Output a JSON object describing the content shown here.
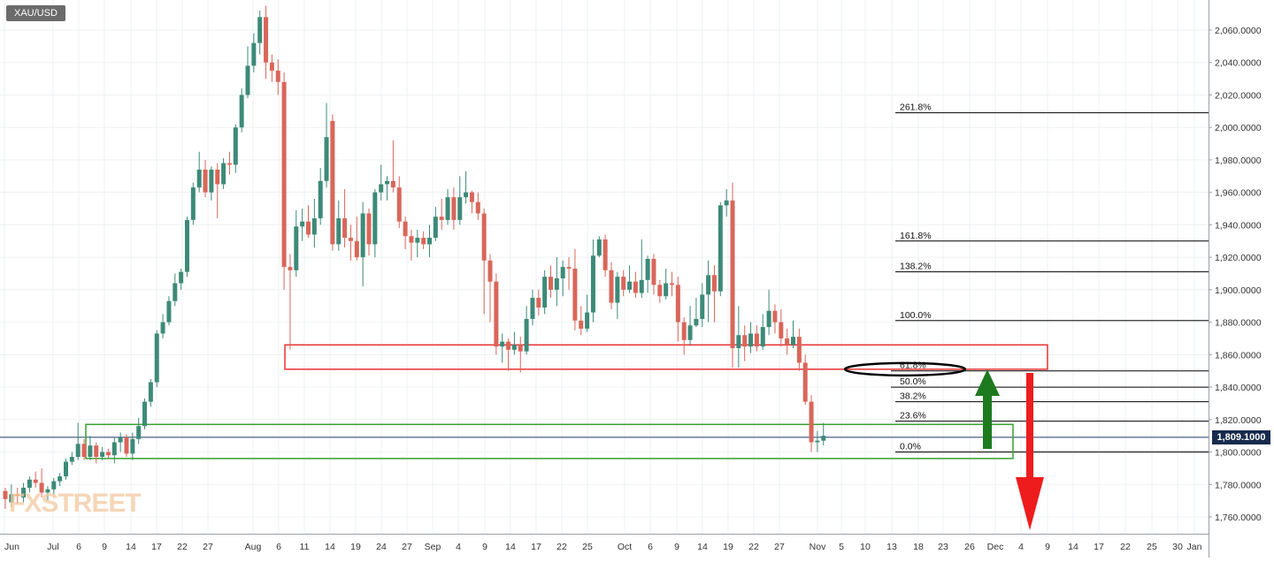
{
  "symbol": "XAU/USD",
  "watermark": "FXSTREET",
  "current_price_label": "1,809.1000",
  "colors": {
    "up": "#3d8a78",
    "down": "#d9665a",
    "zone_red": "#e83030",
    "zone_green": "#38a030",
    "arrow_up": "#1e7a1e",
    "arrow_down": "#ee1c1c",
    "price_tag": "#182b4d"
  },
  "chart_data": {
    "type": "candlestick",
    "ylim": [
      1745,
      2075
    ],
    "y_ticks": [
      "2,060.0000",
      "2,040.0000",
      "2,020.0000",
      "2,000.0000",
      "1,980.0000",
      "1,960.0000",
      "1,940.0000",
      "1,920.0000",
      "1,900.0000",
      "1,880.0000",
      "1,860.0000",
      "1,840.0000",
      "1,820.0000",
      "1,800.0000",
      "1,780.0000",
      "1,760.0000"
    ],
    "y_tick_values": [
      2060,
      2040,
      2020,
      2000,
      1980,
      1960,
      1940,
      1920,
      1900,
      1880,
      1860,
      1840,
      1820,
      1800,
      1780,
      1760
    ],
    "x_labels": [
      "Jun",
      "Jul",
      "6",
      "9",
      "14",
      "17",
      "22",
      "27",
      "Aug",
      "6",
      "11",
      "14",
      "19",
      "24",
      "27",
      "Sep",
      "4",
      "9",
      "14",
      "17",
      "22",
      "25",
      "Oct",
      "6",
      "9",
      "14",
      "19",
      "22",
      "27",
      "Nov",
      "5",
      "10",
      "13",
      "18",
      "23",
      "26",
      "Dec",
      "4",
      "9",
      "14",
      "17",
      "22",
      "25",
      "30",
      "Jan"
    ],
    "candles": [
      [
        1776,
        1771,
        1778,
        1765
      ],
      [
        1769,
        1774,
        1780,
        1766
      ],
      [
        1774,
        1773,
        1778,
        1768
      ],
      [
        1772,
        1778,
        1781,
        1769
      ],
      [
        1778,
        1783,
        1785,
        1775
      ],
      [
        1783,
        1781,
        1788,
        1778
      ],
      [
        1781,
        1775,
        1790,
        1772
      ],
      [
        1775,
        1777,
        1779,
        1770
      ],
      [
        1777,
        1782,
        1784,
        1774
      ],
      [
        1782,
        1785,
        1787,
        1779
      ],
      [
        1785,
        1794,
        1796,
        1783
      ],
      [
        1794,
        1797,
        1800,
        1792
      ],
      [
        1797,
        1805,
        1818,
        1795
      ],
      [
        1805,
        1797,
        1808,
        1795
      ],
      [
        1797,
        1804,
        1810,
        1795
      ],
      [
        1804,
        1797,
        1806,
        1793
      ],
      [
        1797,
        1800,
        1803,
        1795
      ],
      [
        1800,
        1798,
        1802,
        1796
      ],
      [
        1798,
        1806,
        1809,
        1793
      ],
      [
        1806,
        1809,
        1812,
        1800
      ],
      [
        1809,
        1799,
        1811,
        1797
      ],
      [
        1799,
        1808,
        1812,
        1795
      ],
      [
        1808,
        1816,
        1821,
        1805
      ],
      [
        1816,
        1831,
        1833,
        1814
      ],
      [
        1831,
        1843,
        1845,
        1828
      ],
      [
        1843,
        1873,
        1875,
        1840
      ],
      [
        1873,
        1880,
        1885,
        1870
      ],
      [
        1880,
        1893,
        1896,
        1878
      ],
      [
        1893,
        1904,
        1910,
        1890
      ],
      [
        1904,
        1911,
        1913,
        1900
      ],
      [
        1911,
        1943,
        1945,
        1908
      ],
      [
        1943,
        1963,
        1966,
        1940
      ],
      [
        1963,
        1974,
        1985,
        1960
      ],
      [
        1974,
        1960,
        1980,
        1957
      ],
      [
        1960,
        1974,
        1976,
        1955
      ],
      [
        1974,
        1965,
        1978,
        1944
      ],
      [
        1965,
        1978,
        1981,
        1962
      ],
      [
        1978,
        1977,
        1985,
        1971
      ],
      [
        1977,
        2000,
        2002,
        1972
      ],
      [
        2000,
        2020,
        2024,
        1997
      ],
      [
        2020,
        2038,
        2050,
        2018
      ],
      [
        2038,
        2052,
        2058,
        2034
      ],
      [
        2052,
        2068,
        2072,
        2045
      ],
      [
        2068,
        2040,
        2075,
        2030
      ],
      [
        2040,
        2035,
        2045,
        2028
      ],
      [
        2035,
        2028,
        2042,
        2020
      ],
      [
        2028,
        1914,
        2034,
        1900
      ],
      [
        1914,
        1912,
        1922,
        1863
      ],
      [
        1912,
        1939,
        1949,
        1908
      ],
      [
        1939,
        1942,
        1950,
        1930
      ],
      [
        1942,
        1934,
        1952,
        1932
      ],
      [
        1934,
        1944,
        1956,
        1926
      ],
      [
        1944,
        1967,
        1975,
        1940
      ],
      [
        1967,
        1994,
        2015,
        1963
      ],
      [
        2004,
        1928,
        2008,
        1924
      ],
      [
        1928,
        1944,
        1955,
        1924
      ],
      [
        1944,
        1932,
        1962,
        1926
      ],
      [
        1932,
        1930,
        1940,
        1918
      ],
      [
        1930,
        1920,
        1945,
        1918
      ],
      [
        1920,
        1947,
        1954,
        1902
      ],
      [
        1947,
        1928,
        1950,
        1921
      ],
      [
        1928,
        1960,
        1962,
        1920
      ],
      [
        1960,
        1965,
        1977,
        1955
      ],
      [
        1965,
        1967,
        1970,
        1955
      ],
      [
        1967,
        1963,
        1992,
        1960
      ],
      [
        1963,
        1942,
        1970,
        1938
      ],
      [
        1942,
        1933,
        1945,
        1925
      ],
      [
        1933,
        1929,
        1937,
        1918
      ],
      [
        1929,
        1932,
        1937,
        1920
      ],
      [
        1932,
        1928,
        1936,
        1925
      ],
      [
        1928,
        1932,
        1940,
        1920
      ],
      [
        1932,
        1945,
        1951,
        1930
      ],
      [
        1945,
        1943,
        1956,
        1937
      ],
      [
        1943,
        1957,
        1962,
        1940
      ],
      [
        1957,
        1943,
        1963,
        1937
      ],
      [
        1943,
        1957,
        1970,
        1940
      ],
      [
        1957,
        1960,
        1973,
        1953
      ],
      [
        1960,
        1954,
        1961,
        1947
      ],
      [
        1954,
        1947,
        1960,
        1943
      ],
      [
        1947,
        1918,
        1950,
        1885
      ],
      [
        1918,
        1905,
        1922,
        1880
      ],
      [
        1905,
        1865,
        1910,
        1860
      ],
      [
        1865,
        1868,
        1873,
        1855
      ],
      [
        1868,
        1863,
        1870,
        1850
      ],
      [
        1863,
        1866,
        1874,
        1860
      ],
      [
        1866,
        1862,
        1871,
        1849
      ],
      [
        1862,
        1882,
        1890,
        1860
      ],
      [
        1882,
        1895,
        1900,
        1878
      ],
      [
        1895,
        1889,
        1900,
        1884
      ],
      [
        1889,
        1908,
        1912,
        1885
      ],
      [
        1908,
        1900,
        1915,
        1895
      ],
      [
        1900,
        1907,
        1920,
        1890
      ],
      [
        1907,
        1914,
        1918,
        1896
      ],
      [
        1914,
        1913,
        1920,
        1900
      ],
      [
        1913,
        1881,
        1925,
        1875
      ],
      [
        1881,
        1876,
        1890,
        1872
      ],
      [
        1876,
        1886,
        1897,
        1874
      ],
      [
        1886,
        1921,
        1931,
        1880
      ],
      [
        1921,
        1931,
        1933,
        1920
      ],
      [
        1931,
        1912,
        1934,
        1908
      ],
      [
        1912,
        1892,
        1917,
        1888
      ],
      [
        1892,
        1908,
        1911,
        1882
      ],
      [
        1908,
        1900,
        1912,
        1896
      ],
      [
        1900,
        1905,
        1915,
        1898
      ],
      [
        1905,
        1898,
        1911,
        1895
      ],
      [
        1898,
        1906,
        1931,
        1895
      ],
      [
        1906,
        1919,
        1921,
        1898
      ],
      [
        1919,
        1903,
        1922,
        1897
      ],
      [
        1903,
        1896,
        1906,
        1892
      ],
      [
        1896,
        1904,
        1913,
        1894
      ],
      [
        1904,
        1903,
        1911,
        1896
      ],
      [
        1903,
        1880,
        1908,
        1868
      ],
      [
        1880,
        1869,
        1883,
        1860
      ],
      [
        1869,
        1878,
        1890,
        1866
      ],
      [
        1878,
        1882,
        1895,
        1877
      ],
      [
        1882,
        1897,
        1904,
        1877
      ],
      [
        1897,
        1909,
        1918,
        1880
      ],
      [
        1909,
        1899,
        1915,
        1880
      ],
      [
        1899,
        1952,
        1954,
        1896
      ],
      [
        1952,
        1955,
        1962,
        1945
      ],
      [
        1955,
        1864,
        1966,
        1852
      ],
      [
        1864,
        1872,
        1890,
        1852
      ],
      [
        1872,
        1865,
        1878,
        1856
      ],
      [
        1865,
        1873,
        1880,
        1861
      ],
      [
        1873,
        1865,
        1878,
        1862
      ],
      [
        1865,
        1877,
        1885,
        1863
      ],
      [
        1877,
        1887,
        1900,
        1872
      ],
      [
        1887,
        1880,
        1891,
        1873
      ],
      [
        1880,
        1870,
        1888,
        1865
      ],
      [
        1870,
        1866,
        1876,
        1860
      ],
      [
        1866,
        1871,
        1881,
        1864
      ],
      [
        1871,
        1855,
        1876,
        1850
      ],
      [
        1855,
        1831,
        1860,
        1829
      ],
      [
        1831,
        1806,
        1835,
        1800
      ],
      [
        1806,
        1807,
        1813,
        1800
      ],
      [
        1807,
        1810,
        1818,
        1804
      ]
    ],
    "fib_levels": [
      {
        "label": "261.8%",
        "value": 2009
      },
      {
        "label": "161.8%",
        "value": 1930
      },
      {
        "label": "138.2%",
        "value": 1911
      },
      {
        "label": "100.0%",
        "value": 1881
      },
      {
        "label": "61.8%",
        "value": 1850
      },
      {
        "label": "50.0%",
        "value": 1840
      },
      {
        "label": "38.2%",
        "value": 1831
      },
      {
        "label": "23.6%",
        "value": 1819
      },
      {
        "label": "0.0%",
        "value": 1800
      }
    ],
    "zones": [
      {
        "name": "red-resistance-zone",
        "top": 1866,
        "bottom": 1851
      },
      {
        "name": "green-support-zone",
        "top": 1817,
        "bottom": 1796
      }
    ],
    "current_price": 1809.1
  }
}
